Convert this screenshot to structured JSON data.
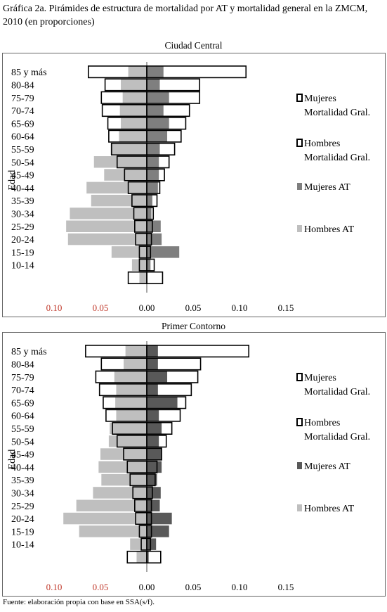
{
  "title": "Gráfica 2a. Pirámides de estructura de mortalidad por AT y mortalidad general en la ZMCM, 2010 (en proporciones)",
  "source": "Fuente: elaboración propia con base en SSA(s/f).",
  "colors": {
    "mujeres_gral": "#ffffff",
    "hombres_gral": "#ffffff",
    "mujeres_at_central": "#7f7f7f",
    "mujeres_at_contorno": "#595959",
    "hombres_at": "#bfbfbf",
    "left_tick_labels": "#c0392b",
    "outline": "#000000"
  },
  "chart_data": [
    {
      "type": "bar",
      "subtype": "population-pyramid",
      "title": "Ciudad Central",
      "ylabel": "Edad",
      "xlim": [
        -0.1,
        0.15
      ],
      "xticks": [
        "0.10",
        "0.05",
        "0.00",
        "0.05",
        "0.10",
        "0.15"
      ],
      "xtick_values": [
        -0.1,
        -0.05,
        0,
        0.05,
        0.1,
        0.15
      ],
      "categories": [
        "85 y más",
        "80-84",
        "75-79",
        "70-74",
        "65-69",
        "60-64",
        "55-59",
        "50-54",
        "45-49",
        "40-44",
        "35-39",
        "30-34",
        "25-29",
        "20-24",
        "15-19",
        "10-14",
        ""
      ],
      "legend": [
        "Mujeres Mortalidad Gral.",
        "Hombres Mortalidad Gral.",
        "Mujeres AT",
        "Hombres AT"
      ],
      "legend_position": "right",
      "series": [
        {
          "name": "Hombres AT",
          "side": "left",
          "values": [
            0.02,
            0.028,
            0.026,
            0.029,
            0.028,
            0.03,
            0.039,
            0.057,
            0.046,
            0.065,
            0.06,
            0.083,
            0.087,
            0.085,
            0.038,
            0.016,
            0.008
          ]
        },
        {
          "name": "Mujeres AT",
          "side": "right",
          "values": [
            0.018,
            0.014,
            0.024,
            0.018,
            0.024,
            0.022,
            0.014,
            0.013,
            0.013,
            0.012,
            0.006,
            0.005,
            0.015,
            0.016,
            0.035,
            0.004,
            0.0
          ]
        },
        {
          "name": "Hombres Mortalidad Gral.",
          "side": "left",
          "values": [
            0.063,
            0.045,
            0.049,
            0.048,
            0.042,
            0.041,
            0.038,
            0.032,
            0.024,
            0.02,
            0.016,
            0.014,
            0.013,
            0.012,
            0.008,
            0.008,
            0.02
          ]
        },
        {
          "name": "Mujeres Mortalidad Gral.",
          "side": "right",
          "values": [
            0.107,
            0.057,
            0.057,
            0.046,
            0.042,
            0.037,
            0.03,
            0.024,
            0.019,
            0.014,
            0.011,
            0.007,
            0.006,
            0.005,
            0.004,
            0.008,
            0.017
          ]
        }
      ]
    },
    {
      "type": "bar",
      "subtype": "population-pyramid",
      "title": "Primer Contorno",
      "ylabel": "Edad",
      "xlim": [
        -0.1,
        0.15
      ],
      "xticks": [
        "0.10",
        "0.05",
        "0.00",
        "0.05",
        "0.10",
        "0.15"
      ],
      "xtick_values": [
        -0.1,
        -0.05,
        0,
        0.05,
        0.1,
        0.15
      ],
      "categories": [
        "85 y más",
        "80-84",
        "75-79",
        "70-74",
        "65-69",
        "60-64",
        "55-59",
        "50-54",
        "45-49",
        "40-44",
        "35-39",
        "30-34",
        "25-29",
        "20-24",
        "15-19",
        "10-14",
        ""
      ],
      "legend": [
        "Mujeres Mortalidad Gral.",
        "Hombres Mortalidad Gral.",
        "Mujeres AT",
        "Hombres AT"
      ],
      "legend_position": "right",
      "series": [
        {
          "name": "Hombres AT",
          "side": "left",
          "values": [
            0.023,
            0.025,
            0.035,
            0.033,
            0.034,
            0.033,
            0.04,
            0.041,
            0.05,
            0.052,
            0.049,
            0.058,
            0.076,
            0.09,
            0.073,
            0.018,
            0.011
          ]
        },
        {
          "name": "Mujeres AT",
          "side": "right",
          "values": [
            0.012,
            0.012,
            0.022,
            0.012,
            0.033,
            0.013,
            0.016,
            0.013,
            0.016,
            0.016,
            0.011,
            0.015,
            0.014,
            0.027,
            0.024,
            0.01,
            0.002
          ]
        },
        {
          "name": "Hombres Mortalidad Gral.",
          "side": "left",
          "values": [
            0.066,
            0.049,
            0.055,
            0.051,
            0.047,
            0.044,
            0.037,
            0.032,
            0.025,
            0.021,
            0.018,
            0.015,
            0.013,
            0.012,
            0.008,
            0.006,
            0.021
          ]
        },
        {
          "name": "Mujeres Mortalidad Gral.",
          "side": "right",
          "values": [
            0.11,
            0.058,
            0.055,
            0.048,
            0.042,
            0.036,
            0.027,
            0.021,
            0.016,
            0.011,
            0.009,
            0.006,
            0.005,
            0.005,
            0.005,
            0.004,
            0.015
          ]
        }
      ]
    }
  ]
}
